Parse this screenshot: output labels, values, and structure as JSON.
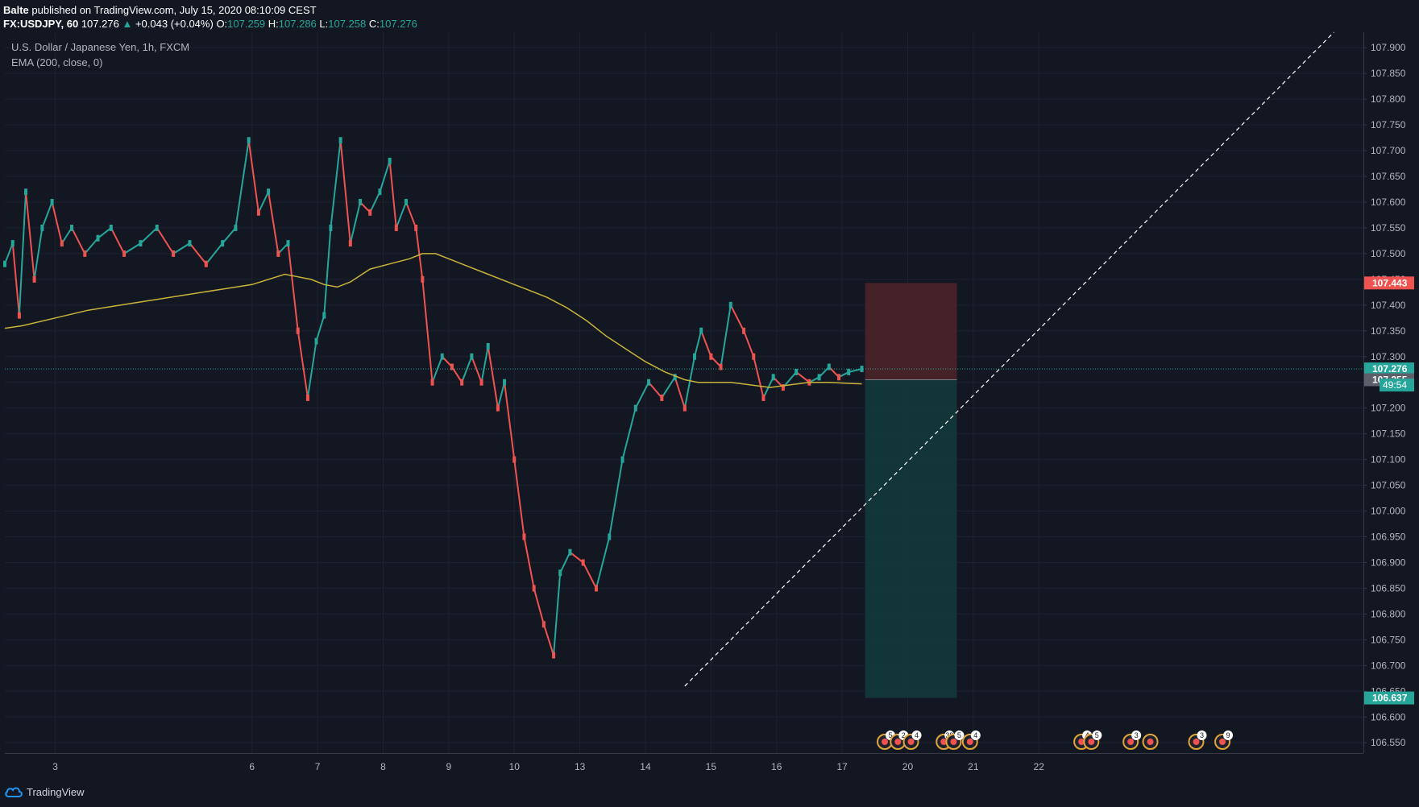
{
  "header": {
    "author": "Balte",
    "published_text": "published on TradingView.com, July 15, 2020 08:10:09 CEST",
    "symbol": "FX:USDJPY, 60",
    "last_price": "107.276",
    "change": "+0.043 (+0.04%)",
    "open_label": "O:",
    "open": "107.259",
    "high_label": "H:",
    "high": "107.286",
    "low_label": "L:",
    "low": "107.258",
    "close_label": "C:",
    "close": "107.276"
  },
  "legend": {
    "instrument": "U.S. Dollar / Japanese Yen, 1h, FXCM",
    "indicator": "EMA (200, close, 0)"
  },
  "footer": {
    "brand": "TradingView"
  },
  "colors": {
    "background": "#131722",
    "up": "#26a69a",
    "down": "#ef5350",
    "ema": "#c9b43a",
    "stop_zone": "#4a2329",
    "target_zone": "#13393a",
    "grid": "#1e2230",
    "price_line": "#26a69a"
  },
  "chart_data": {
    "type": "line",
    "instrument": "USDJPY",
    "timeframe": "1h",
    "x_ticks": [
      "3",
      "6",
      "7",
      "8",
      "9",
      "10",
      "13",
      "14",
      "15",
      "16",
      "17",
      "20",
      "21",
      "22"
    ],
    "y_ticks": [
      "106.550",
      "106.600",
      "106.650",
      "106.700",
      "106.750",
      "106.800",
      "106.850",
      "106.900",
      "106.950",
      "107.000",
      "107.050",
      "107.100",
      "107.150",
      "107.200",
      "107.250",
      "107.300",
      "107.350",
      "107.400",
      "107.450",
      "107.500",
      "107.550",
      "107.600",
      "107.650",
      "107.700",
      "107.750",
      "107.800",
      "107.850",
      "107.900"
    ],
    "ylim": [
      106.53,
      107.93
    ],
    "x_range": [
      2.23,
      22.95
    ],
    "series": [
      {
        "type": "close-path",
        "x": [
          2.23,
          2.35,
          2.45,
          2.55,
          2.68,
          2.8,
          2.95,
          3.1,
          3.25,
          3.45,
          3.65,
          3.85,
          4.05,
          4.3,
          4.55,
          4.8,
          5.05,
          5.3,
          5.55,
          5.75,
          5.95,
          6.1,
          6.25,
          6.4,
          6.55,
          6.7,
          6.85,
          6.98,
          7.1,
          7.2,
          7.35,
          7.5,
          7.65,
          7.8,
          7.95,
          8.1,
          8.2,
          8.35,
          8.5,
          8.6,
          8.75,
          8.9,
          9.05,
          9.2,
          9.35,
          9.5,
          9.6,
          9.75,
          9.85,
          10.0,
          10.15,
          10.3,
          10.45,
          10.6,
          10.7,
          10.85,
          11.05,
          11.25,
          11.45,
          11.65,
          11.85,
          12.05,
          12.25,
          12.45,
          12.6,
          12.75,
          12.85,
          13.0,
          13.15,
          13.3,
          13.5,
          13.65,
          13.8,
          13.95,
          14.1,
          14.3,
          14.5,
          14.65,
          14.8,
          14.95,
          15.1,
          15.3
        ],
        "y": [
          107.48,
          107.52,
          107.38,
          107.62,
          107.45,
          107.55,
          107.6,
          107.52,
          107.55,
          107.5,
          107.53,
          107.55,
          107.5,
          107.52,
          107.55,
          107.5,
          107.52,
          107.48,
          107.52,
          107.55,
          107.72,
          107.58,
          107.62,
          107.5,
          107.52,
          107.35,
          107.22,
          107.33,
          107.38,
          107.55,
          107.72,
          107.52,
          107.6,
          107.58,
          107.62,
          107.68,
          107.55,
          107.6,
          107.55,
          107.45,
          107.25,
          107.3,
          107.28,
          107.25,
          107.3,
          107.25,
          107.32,
          107.2,
          107.25,
          107.1,
          106.95,
          106.85,
          106.78,
          106.72,
          106.88,
          106.92,
          106.9,
          106.85,
          106.95,
          107.1,
          107.2,
          107.25,
          107.22,
          107.26,
          107.2,
          107.3,
          107.35,
          107.3,
          107.28,
          107.4,
          107.35,
          107.3,
          107.22,
          107.26,
          107.24,
          107.27,
          107.25,
          107.26,
          107.28,
          107.26,
          107.27,
          107.276
        ]
      },
      {
        "name": "EMA (200, close, 0)",
        "x": [
          2.23,
          2.5,
          3.0,
          3.5,
          4.0,
          4.5,
          5.0,
          5.5,
          6.0,
          6.5,
          6.9,
          7.1,
          7.3,
          7.5,
          7.8,
          8.1,
          8.4,
          8.6,
          8.8,
          9.0,
          9.3,
          9.6,
          9.9,
          10.2,
          10.5,
          10.8,
          11.1,
          11.4,
          11.7,
          12.0,
          12.3,
          12.6,
          12.8,
          13.0,
          13.3,
          13.6,
          13.9,
          14.2,
          14.5,
          14.8,
          15.1,
          15.3
        ],
        "y": [
          107.355,
          107.36,
          107.375,
          107.39,
          107.4,
          107.41,
          107.42,
          107.43,
          107.44,
          107.46,
          107.45,
          107.44,
          107.435,
          107.445,
          107.47,
          107.48,
          107.49,
          107.5,
          107.5,
          107.49,
          107.475,
          107.46,
          107.445,
          107.43,
          107.415,
          107.395,
          107.37,
          107.34,
          107.315,
          107.29,
          107.27,
          107.255,
          107.25,
          107.25,
          107.25,
          107.245,
          107.24,
          107.245,
          107.25,
          107.25,
          107.248,
          107.247
        ]
      }
    ],
    "trendline": {
      "x": [
        12.6,
        22.5
      ],
      "y": [
        106.66,
        107.93
      ]
    },
    "position": {
      "type": "short",
      "start_x": 15.35,
      "end_x": 16.75,
      "stop": 107.443,
      "entry": 107.255,
      "target": 106.637
    },
    "price_labels": [
      {
        "value": 107.443,
        "text": "107.443",
        "color": "#ef5350"
      },
      {
        "value": 107.276,
        "text": "107.276",
        "color": "#26a69a"
      },
      {
        "value": 107.255,
        "text": "107.255",
        "color": "#5d606b"
      },
      {
        "value": 106.637,
        "text": "106.637",
        "color": "#26a69a"
      }
    ],
    "countdown": "49:54",
    "events": [
      {
        "x": 15.65,
        "label": "5"
      },
      {
        "x": 15.85,
        "label": "2"
      },
      {
        "x": 16.05,
        "label": "4"
      },
      {
        "x": 16.55,
        "label": "38"
      },
      {
        "x": 16.7,
        "label": "5"
      },
      {
        "x": 16.95,
        "label": "4"
      },
      {
        "x": 18.65,
        "label": "4"
      },
      {
        "x": 18.8,
        "label": "5"
      },
      {
        "x": 19.4,
        "label": "3"
      },
      {
        "x": 19.7,
        "label": ""
      },
      {
        "x": 20.4,
        "label": "3"
      },
      {
        "x": 20.8,
        "label": "9"
      }
    ]
  }
}
